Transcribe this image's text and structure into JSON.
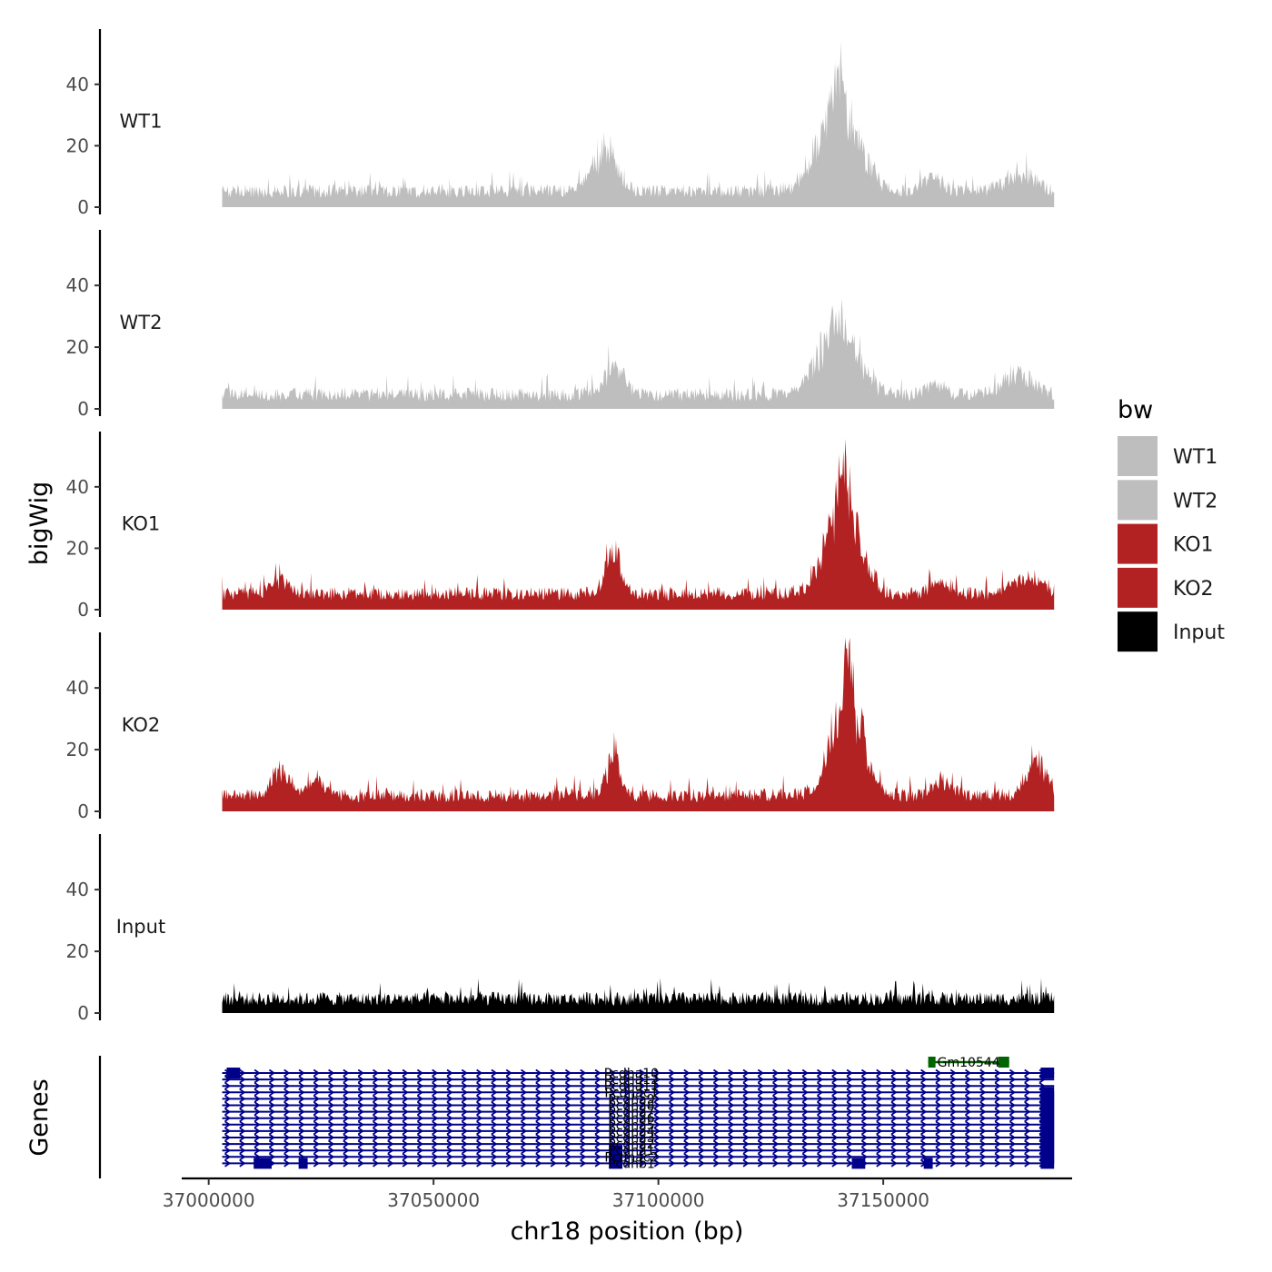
{
  "chart_data": {
    "type": "area",
    "title": "",
    "ylabel": "bigWig",
    "xlabel": "chr18 position (bp)",
    "chromosome": "chr18",
    "xlim": [
      36994000,
      37192000
    ],
    "region": [
      37003000,
      37188000
    ],
    "ylim": [
      0,
      58
    ],
    "y_ticks": [
      0,
      20,
      40
    ],
    "x_ticks": [
      37000000,
      37050000,
      37100000,
      37150000
    ],
    "x_tick_labels": [
      "37000000",
      "37050000",
      "37100000",
      "37150000"
    ],
    "series": [
      {
        "name": "WT1",
        "color": "#bebebe",
        "baseline": 5,
        "noise": 5,
        "peaks": [
          [
            37088000,
            15,
            2500
          ],
          [
            37140000,
            28,
            4500
          ],
          [
            37140000,
            12,
            1200
          ],
          [
            37161000,
            6,
            2000
          ],
          [
            37180000,
            7,
            3000
          ]
        ]
      },
      {
        "name": "WT2",
        "color": "#bebebe",
        "baseline": 4,
        "noise": 5,
        "peaks": [
          [
            37090000,
            9,
            2500
          ],
          [
            37140000,
            22,
            4500
          ],
          [
            37140000,
            8,
            1200
          ],
          [
            37161000,
            4,
            2000
          ],
          [
            37180000,
            7,
            3000
          ]
        ]
      },
      {
        "name": "KO1",
        "color": "#b22222",
        "baseline": 5,
        "noise": 5,
        "peaks": [
          [
            37090000,
            15,
            1800
          ],
          [
            37141000,
            33,
            3500
          ],
          [
            37141000,
            14,
            900
          ],
          [
            37163000,
            5,
            2000
          ],
          [
            37182000,
            6,
            3000
          ],
          [
            37016000,
            5,
            2000
          ]
        ]
      },
      {
        "name": "KO2",
        "color": "#b22222",
        "baseline": 5,
        "noise": 5,
        "peaks": [
          [
            37090000,
            14,
            1500
          ],
          [
            37142000,
            33,
            3500
          ],
          [
            37142000,
            16,
            900
          ],
          [
            37163000,
            5,
            2000
          ],
          [
            37184000,
            13,
            2200
          ],
          [
            37016000,
            9,
            2000
          ],
          [
            37024000,
            6,
            1500
          ]
        ]
      },
      {
        "name": "Input",
        "color": "#000000",
        "baseline": 4,
        "noise": 5,
        "peaks": []
      }
    ],
    "legend": {
      "title": "bw",
      "position": "right",
      "entries": [
        {
          "label": "WT1",
          "color": "#bebebe"
        },
        {
          "label": "WT2",
          "color": "#bebebe"
        },
        {
          "label": "KO1",
          "color": "#b22222"
        },
        {
          "label": "KO2",
          "color": "#b22222"
        },
        {
          "label": "Input",
          "color": "#000000"
        }
      ]
    },
    "genes_track": {
      "label": "Genes",
      "strand_color": "#00008b",
      "transcript_rows": 15,
      "transcript_span": [
        37003000,
        37188000
      ],
      "exon_blocks": [
        {
          "start": 37004000,
          "end": 37007000,
          "rows": [
            0
          ]
        },
        {
          "start": 37010000,
          "end": 37014000,
          "rows": [
            14
          ]
        },
        {
          "start": 37020000,
          "end": 37022000,
          "rows": [
            14
          ]
        },
        {
          "start": 37089000,
          "end": 37092000,
          "rows": [
            12,
            13,
            14
          ]
        },
        {
          "start": 37143000,
          "end": 37146000,
          "rows": [
            14
          ]
        },
        {
          "start": 37159000,
          "end": 37161000,
          "rows": [
            14
          ]
        },
        {
          "start": 37185000,
          "end": 37188000,
          "rows": [
            0,
            3,
            4,
            5,
            6,
            7,
            8,
            9,
            10,
            11,
            12,
            13,
            14
          ]
        }
      ],
      "genes": [
        {
          "name": "Pcdha10",
          "row": 0,
          "x": 37094000
        },
        {
          "name": "Pcdha12",
          "row": 1,
          "x": 37094000
        },
        {
          "name": "Pcdha11",
          "row": 2,
          "x": 37094000
        },
        {
          "name": "Pcdhac1",
          "row": 3,
          "x": 37094000
        },
        {
          "name": "Pcdha9",
          "row": 4,
          "x": 37094000
        },
        {
          "name": "Pcdha8",
          "row": 5,
          "x": 37094000
        },
        {
          "name": "Pcdha7",
          "row": 6,
          "x": 37094000
        },
        {
          "name": "Pcdha6",
          "row": 7,
          "x": 37094000
        },
        {
          "name": "Pcdha5",
          "row": 8,
          "x": 37094000
        },
        {
          "name": "Pcdha4",
          "row": 9,
          "x": 37094000
        },
        {
          "name": "Pcdha3",
          "row": 10,
          "x": 37094000
        },
        {
          "name": "Pcdha2",
          "row": 11,
          "x": 37094000
        },
        {
          "name": "Pcdha1",
          "row": 12,
          "x": 37094000
        },
        {
          "name": "Pcdhac2",
          "row": 13,
          "x": 37094000
        },
        {
          "name": "Pcdhb1",
          "row": 14,
          "x": 37094000
        }
      ],
      "extra_gene": {
        "name": "Gm10544",
        "start": 37160000,
        "end": 37178000,
        "color": "#006400"
      }
    }
  }
}
